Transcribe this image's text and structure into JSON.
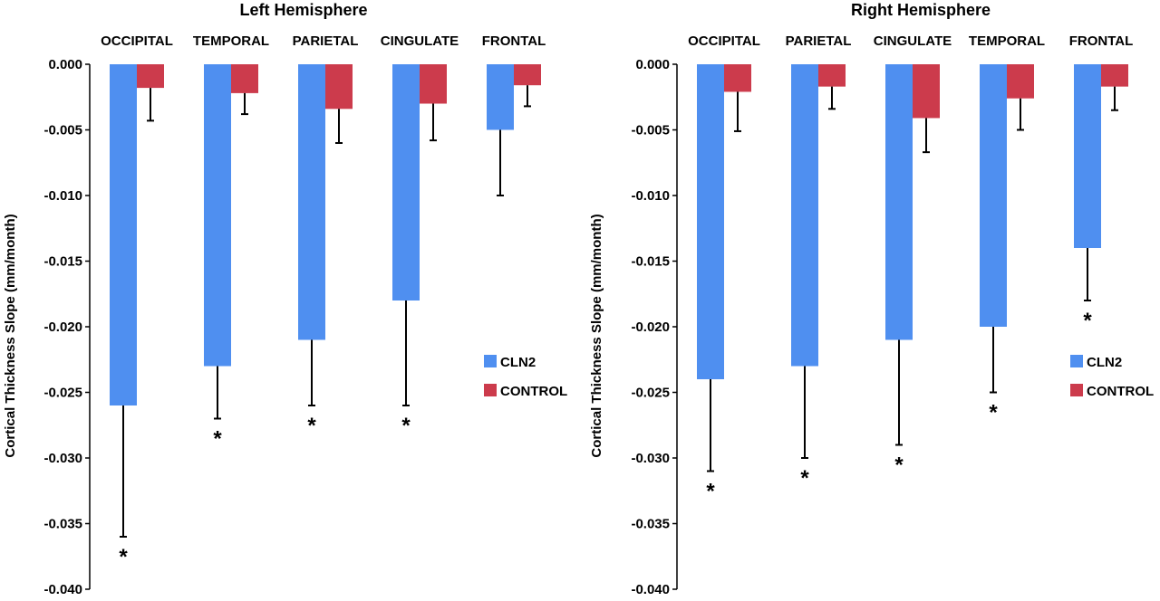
{
  "chart_data": [
    {
      "type": "bar",
      "title": "Left Hemisphere",
      "ylabel": "Cortical Thickness Slope (mm/month)",
      "xlabel": "",
      "ylim": [
        -0.04,
        0.0
      ],
      "yticks": [
        "0.000",
        "-0.005",
        "-0.010",
        "-0.015",
        "-0.020",
        "-0.025",
        "-0.030",
        "-0.035",
        "-0.040"
      ],
      "ytick_values": [
        0.0,
        -0.005,
        -0.01,
        -0.015,
        -0.02,
        -0.025,
        -0.03,
        -0.035,
        -0.04
      ],
      "x_axis_position": "top",
      "categories": [
        "OCCIPITAL",
        "TEMPORAL",
        "PARIETAL",
        "CINGULATE",
        "FRONTAL"
      ],
      "series": [
        {
          "name": "CLN2",
          "color": "#4f8ff0",
          "values": [
            -0.026,
            -0.023,
            -0.021,
            -0.018,
            -0.005
          ],
          "error": [
            0.01,
            0.004,
            0.005,
            0.008,
            0.005
          ]
        },
        {
          "name": "CONTROL",
          "color": "#cc3b4c",
          "values": [
            -0.0018,
            -0.0022,
            -0.0034,
            -0.003,
            -0.0016
          ],
          "error": [
            0.0025,
            0.0016,
            0.0026,
            0.0028,
            0.0016
          ]
        }
      ],
      "significance": [
        "*",
        "*",
        "*",
        "*",
        ""
      ],
      "legend_placement": "right"
    },
    {
      "type": "bar",
      "title": "Right Hemisphere",
      "ylabel": "Cortical Thickness Slope (mm/month)",
      "xlabel": "",
      "ylim": [
        -0.04,
        0.0
      ],
      "yticks": [
        "0.000",
        "-0.005",
        "-0.010",
        "-0.015",
        "-0.020",
        "-0.025",
        "-0.030",
        "-0.035",
        "-0.040"
      ],
      "ytick_values": [
        0.0,
        -0.005,
        -0.01,
        -0.015,
        -0.02,
        -0.025,
        -0.03,
        -0.035,
        -0.04
      ],
      "x_axis_position": "top",
      "categories": [
        "OCCIPITAL",
        "PARIETAL",
        "CINGULATE",
        "TEMPORAL",
        "FRONTAL"
      ],
      "series": [
        {
          "name": "CLN2",
          "color": "#4f8ff0",
          "values": [
            -0.024,
            -0.023,
            -0.021,
            -0.02,
            -0.014
          ],
          "error": [
            0.007,
            0.007,
            0.008,
            0.005,
            0.004
          ]
        },
        {
          "name": "CONTROL",
          "color": "#cc3b4c",
          "values": [
            -0.0021,
            -0.0017,
            -0.0041,
            -0.0026,
            -0.0017
          ],
          "error": [
            0.003,
            0.0017,
            0.0026,
            0.0024,
            0.0018
          ]
        }
      ],
      "significance": [
        "*",
        "*",
        "*",
        "*",
        "*"
      ],
      "legend_placement": "right"
    }
  ]
}
